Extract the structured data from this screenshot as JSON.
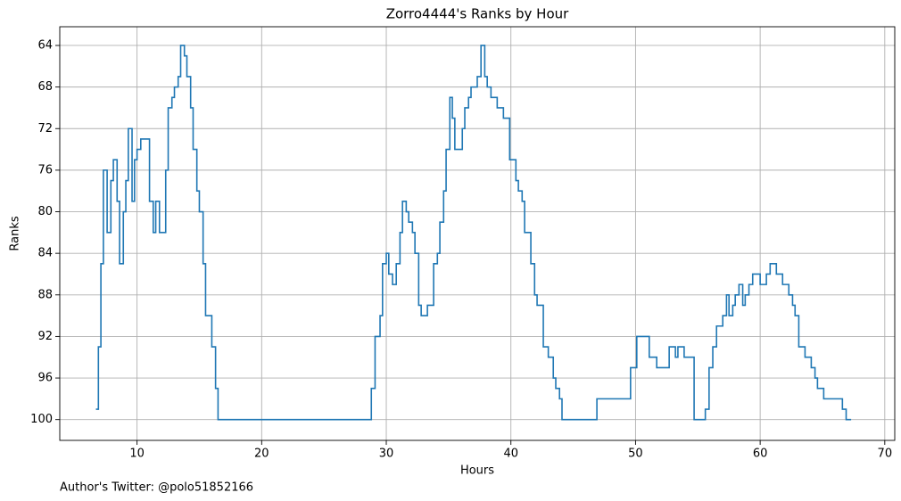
{
  "chart_data": {
    "type": "line",
    "drawstyle": "steps-post",
    "title": "Zorro4444's Ranks by Hour",
    "x_label": "Hours",
    "y_label": "Ranks",
    "annotation": "Author's Twitter: @polo51852166",
    "xlim": [
      3.8,
      70.8
    ],
    "xticks": [
      10,
      20,
      30,
      40,
      50,
      60,
      70
    ],
    "ylim": [
      102,
      62.2
    ],
    "yticks": [
      64,
      68,
      72,
      76,
      80,
      84,
      88,
      92,
      96,
      100
    ],
    "y_inverted": true,
    "grid": true,
    "series": [
      {
        "name": "Zorro4444",
        "color": "#1f77b4",
        "x": [
          6.7,
          6.9,
          7.1,
          7.3,
          7.6,
          7.9,
          8.1,
          8.4,
          8.6,
          8.9,
          9.1,
          9.3,
          9.6,
          9.8,
          10.0,
          10.3,
          11.0,
          11.3,
          11.5,
          11.8,
          12.3,
          12.5,
          12.8,
          13.0,
          13.3,
          13.5,
          13.8,
          14.0,
          14.3,
          14.5,
          14.8,
          15.0,
          15.3,
          15.5,
          16.0,
          16.3,
          16.5,
          28.8,
          29.1,
          29.5,
          29.7,
          30.0,
          30.2,
          30.5,
          30.8,
          31.1,
          31.3,
          31.6,
          31.8,
          32.1,
          32.3,
          32.6,
          32.8,
          33.3,
          33.8,
          34.1,
          34.3,
          34.6,
          34.8,
          35.1,
          35.3,
          35.5,
          36.1,
          36.3,
          36.6,
          36.8,
          37.3,
          37.6,
          37.9,
          38.1,
          38.4,
          38.9,
          39.4,
          39.9,
          40.4,
          40.6,
          40.9,
          41.1,
          41.6,
          41.9,
          42.1,
          42.6,
          43.0,
          43.4,
          43.6,
          43.9,
          44.1,
          46.9,
          49.6,
          50.1,
          51.1,
          51.7,
          52.7,
          53.2,
          53.4,
          53.9,
          54.7,
          55.6,
          55.9,
          56.2,
          56.5,
          57.0,
          57.3,
          57.5,
          57.8,
          58.0,
          58.3,
          58.6,
          58.8,
          59.1,
          59.4,
          60.0,
          60.5,
          60.8,
          61.3,
          61.8,
          62.3,
          62.6,
          62.8,
          63.1,
          63.6,
          64.1,
          64.4,
          64.6,
          65.1,
          66.6,
          66.9,
          67.3
        ],
        "values": [
          99,
          93,
          85,
          76,
          82,
          77,
          75,
          79,
          85,
          80,
          77,
          72,
          79,
          75,
          74,
          73,
          79,
          82,
          79,
          82,
          76,
          70,
          69,
          68,
          67,
          64,
          65,
          67,
          70,
          74,
          78,
          80,
          85,
          90,
          93,
          97,
          100,
          97,
          92,
          90,
          85,
          84,
          86,
          87,
          85,
          82,
          79,
          80,
          81,
          82,
          84,
          89,
          90,
          89,
          85,
          84,
          81,
          78,
          74,
          69,
          71,
          74,
          72,
          70,
          69,
          68,
          67,
          64,
          67,
          68,
          69,
          70,
          71,
          75,
          77,
          78,
          79,
          82,
          85,
          88,
          89,
          93,
          94,
          96,
          97,
          98,
          100,
          98,
          95,
          92,
          94,
          95,
          93,
          94,
          93,
          94,
          100,
          99,
          95,
          93,
          91,
          90,
          88,
          90,
          89,
          88,
          87,
          89,
          88,
          87,
          86,
          87,
          86,
          85,
          86,
          87,
          88,
          89,
          90,
          93,
          94,
          95,
          96,
          97,
          98,
          99,
          100,
          100
        ]
      }
    ]
  }
}
